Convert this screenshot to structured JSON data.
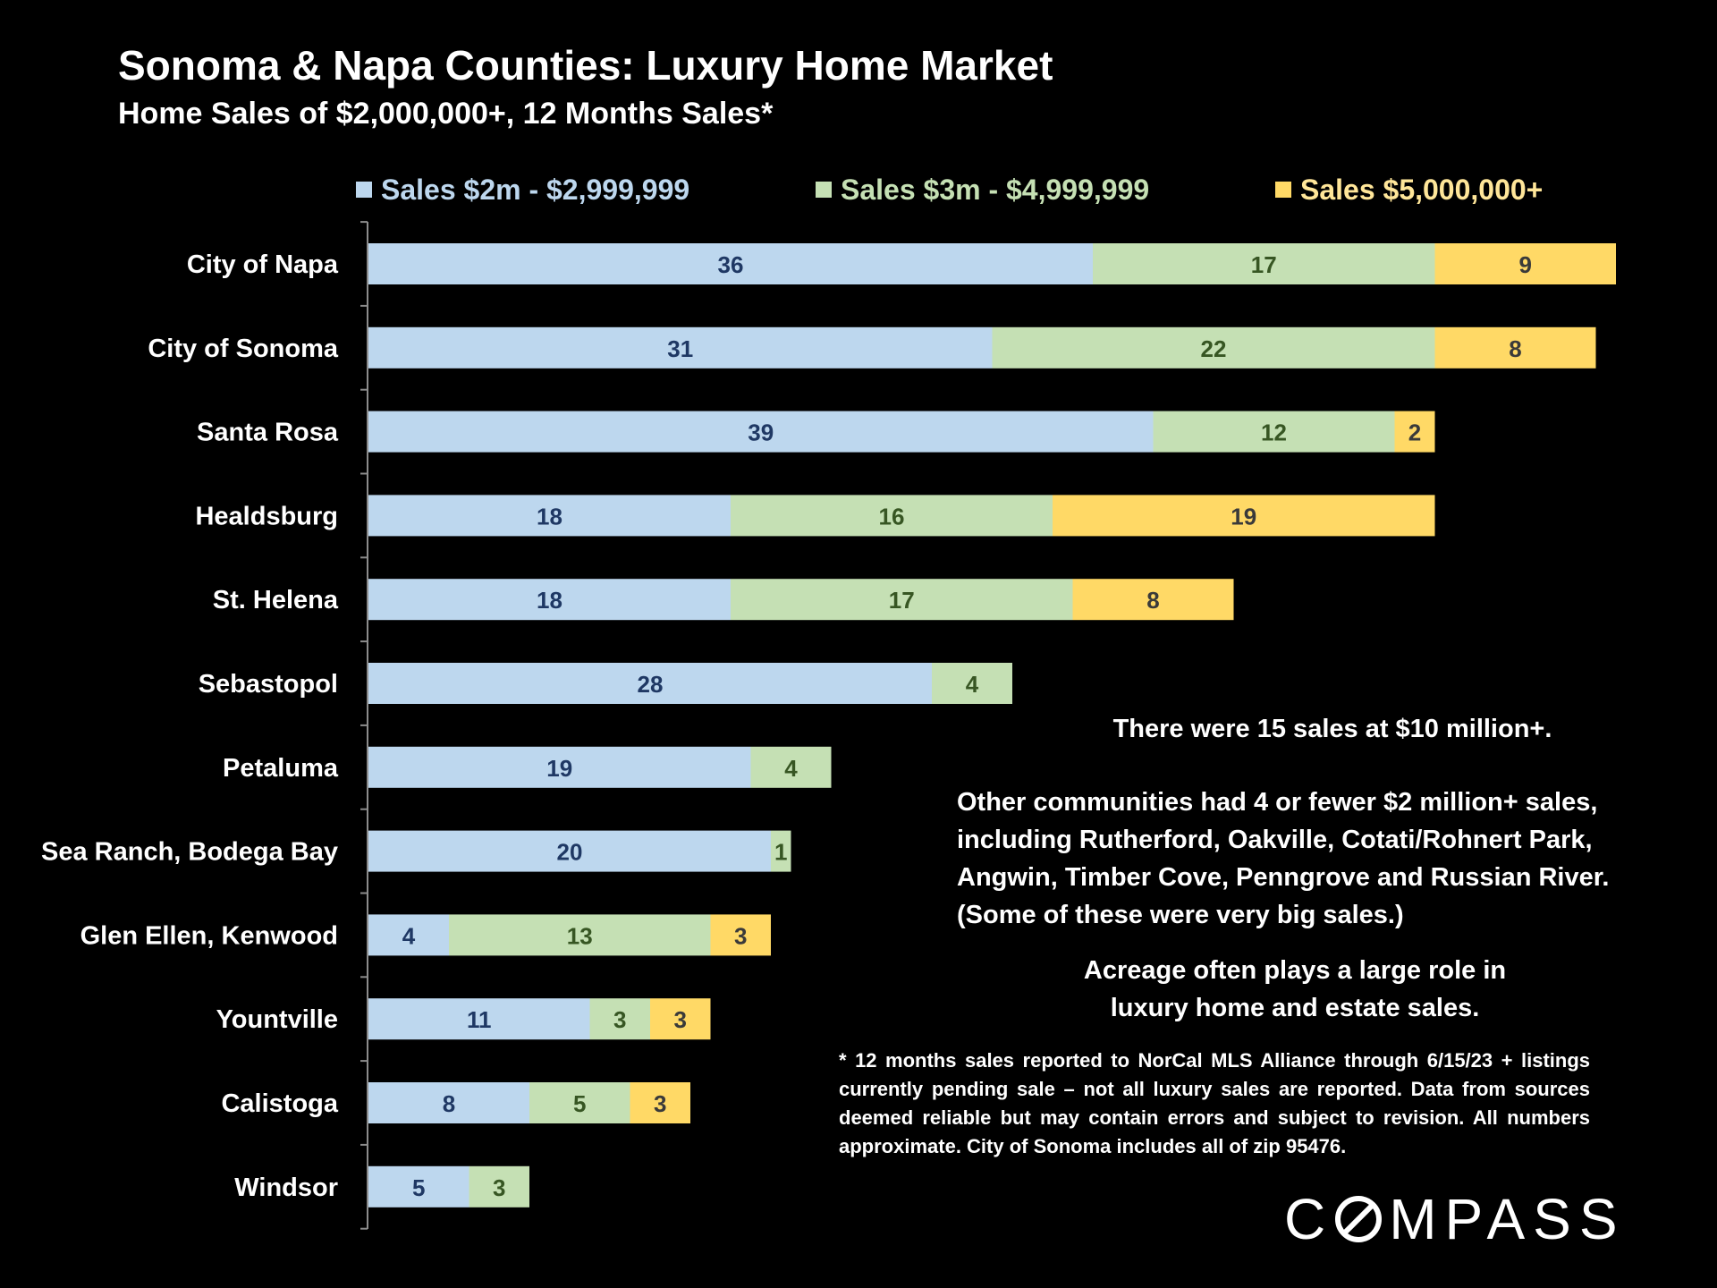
{
  "chart_data": {
    "type": "bar",
    "orientation": "horizontal",
    "stacked": true,
    "title": "Sonoma & Napa Counties: Luxury Home Market",
    "subtitle": "Home Sales of $2,000,000+, 12 Months Sales*",
    "categories": [
      "City of Napa",
      "City of Sonoma",
      "Santa Rosa",
      "Healdsburg",
      "St. Helena",
      "Sebastopol",
      "Petaluma",
      "Sea Ranch, Bodega Bay",
      "Glen Ellen, Kenwood",
      "Yountville",
      "Calistoga",
      "Windsor"
    ],
    "series": [
      {
        "name": "Sales $2m - $2,999,999",
        "color": "#BDD7EE",
        "label_color": "#1F3864",
        "legend_text_color": "#BDD7EE",
        "values": [
          36,
          31,
          39,
          18,
          18,
          28,
          19,
          20,
          4,
          11,
          8,
          5
        ]
      },
      {
        "name": "Sales $3m - $4,999,999",
        "color": "#C5E0B4",
        "label_color": "#375623",
        "legend_text_color": "#C5E0B4",
        "values": [
          17,
          22,
          12,
          16,
          17,
          4,
          4,
          1,
          13,
          3,
          5,
          3
        ]
      },
      {
        "name": "Sales $5,000,000+",
        "color": "#FFD966",
        "label_color": "#3A3A3A",
        "legend_text_color": "#FFE699",
        "values": [
          9,
          8,
          2,
          19,
          8,
          0,
          0,
          0,
          3,
          3,
          3,
          0
        ]
      }
    ],
    "xlim": [
      0,
      62
    ],
    "grid": false,
    "legend": "top"
  },
  "notes": {
    "ten_million": "There were 15 sales at $10 million+.",
    "other_communities": [
      "Other communities had 4 or fewer $2 million+ sales,",
      "including Rutherford, Oakville, Cotati/Rohnert Park,",
      "Angwin, Timber Cove, Penngrove and Russian River.",
      "(Some of these were very big sales.)"
    ],
    "acreage": [
      "Acreage often plays a large role in",
      "luxury home  and estate sales."
    ],
    "footnote": "* 12 months sales reported to NorCal MLS Alliance through 6/15/23 + listings currently pending sale – not all luxury sales are reported. Data from sources deemed reliable but may contain errors and subject to revision. All numbers approximate.  City of Sonoma includes all of zip 95476."
  },
  "brand": {
    "logo_before": "C",
    "logo_after": "MPASS"
  }
}
